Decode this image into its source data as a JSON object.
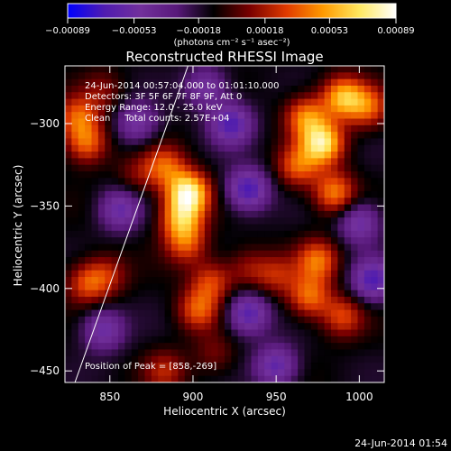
{
  "chart_data": {
    "type": "heatmap",
    "title": "Reconstructed RHESSI Image",
    "xlabel": "Heliocentric X (arcsec)",
    "ylabel": "Heliocentric Y (arcsec)",
    "xlim": [
      823,
      1015
    ],
    "ylim": [
      -457,
      -265
    ],
    "x_ticks": [
      850,
      900,
      950,
      1000
    ],
    "x_tick_labels": [
      "850",
      "900",
      "950",
      "1000"
    ],
    "y_ticks": [
      -300,
      -350,
      -400,
      -450
    ],
    "y_tick_labels": [
      "−300",
      "−350",
      "−400",
      "−450"
    ],
    "colorbar": {
      "colormap": [
        "#0000ff",
        "#4f1cb0",
        "#72309c",
        "#58197a",
        "#000000",
        "#7a0000",
        "#e03a00",
        "#ff9a00",
        "#ffe860",
        "#ffffff"
      ],
      "range": [
        -0.00089,
        0.00089
      ],
      "ticks": [
        -0.00089,
        -0.00053,
        -0.00018,
        0.00018,
        0.00053,
        0.00089
      ],
      "tick_labels": [
        "−0.00089",
        "−0.00053",
        "−0.00018",
        "0.00018",
        "0.00053",
        "0.00089"
      ],
      "unit_label": "(photons cm⁻² s⁻¹ asec⁻²)"
    },
    "annotations": [
      "24-Jun-2014 00:57:04.000 to 01:01:10.000",
      "Detectors: 3F 5F 6F 7F 8F 9F, Att 0",
      "Energy Range: 12.0 - 25.0 keV",
      "Clean     Total counts: 2.57E+04"
    ],
    "peak_label": "Position of Peak = [858,-269]",
    "peak_position": [
      858,
      -269
    ],
    "limb_line": [
      [
        829,
        -457
      ],
      [
        897,
        -265
      ]
    ],
    "sources": [
      {
        "x": 897,
        "y": -342,
        "value": 0.00089
      },
      {
        "x": 893,
        "y": -358,
        "value": 0.0006
      },
      {
        "x": 883,
        "y": -326,
        "value": 0.00045
      },
      {
        "x": 896,
        "y": -373,
        "value": 0.0004
      },
      {
        "x": 911,
        "y": -396,
        "value": 0.0004
      },
      {
        "x": 903,
        "y": -413,
        "value": 0.00045
      },
      {
        "x": 978,
        "y": -312,
        "value": 0.0008
      },
      {
        "x": 990,
        "y": -284,
        "value": 0.00065
      },
      {
        "x": 968,
        "y": -296,
        "value": 0.00055
      },
      {
        "x": 985,
        "y": -342,
        "value": 0.00055
      },
      {
        "x": 963,
        "y": -326,
        "value": 0.00045
      },
      {
        "x": 975,
        "y": -383,
        "value": 0.0005
      },
      {
        "x": 970,
        "y": -405,
        "value": 0.0005
      },
      {
        "x": 990,
        "y": -417,
        "value": 0.0004
      },
      {
        "x": 950,
        "y": -392,
        "value": 0.0003
      },
      {
        "x": 933,
        "y": -388,
        "value": 0.00025
      },
      {
        "x": 1005,
        "y": -290,
        "value": 0.00045
      },
      {
        "x": 836,
        "y": -312,
        "value": 0.0005
      },
      {
        "x": 831,
        "y": -296,
        "value": 0.00045
      },
      {
        "x": 836,
        "y": -397,
        "value": 0.0004
      },
      {
        "x": 848,
        "y": -392,
        "value": 0.0003
      },
      {
        "x": 866,
        "y": -332,
        "value": 0.0002
      },
      {
        "x": 846,
        "y": -280,
        "value": 0.0002
      },
      {
        "x": 883,
        "y": -450,
        "value": 0.0003
      },
      {
        "x": 913,
        "y": -440,
        "value": 0.0002
      },
      {
        "x": 933,
        "y": -340,
        "value": -0.0006
      },
      {
        "x": 923,
        "y": -300,
        "value": -0.00055
      },
      {
        "x": 933,
        "y": -415,
        "value": -0.00055
      },
      {
        "x": 950,
        "y": -447,
        "value": -0.0005
      },
      {
        "x": 856,
        "y": -352,
        "value": -0.00045
      },
      {
        "x": 846,
        "y": -425,
        "value": -0.00045
      },
      {
        "x": 1008,
        "y": -395,
        "value": -0.00055
      },
      {
        "x": 1000,
        "y": -360,
        "value": -0.00045
      },
      {
        "x": 908,
        "y": -278,
        "value": -0.0004
      },
      {
        "x": 866,
        "y": -300,
        "value": -0.0004
      }
    ]
  },
  "footer": {
    "timestamp": "24-Jun-2014 01:54"
  }
}
